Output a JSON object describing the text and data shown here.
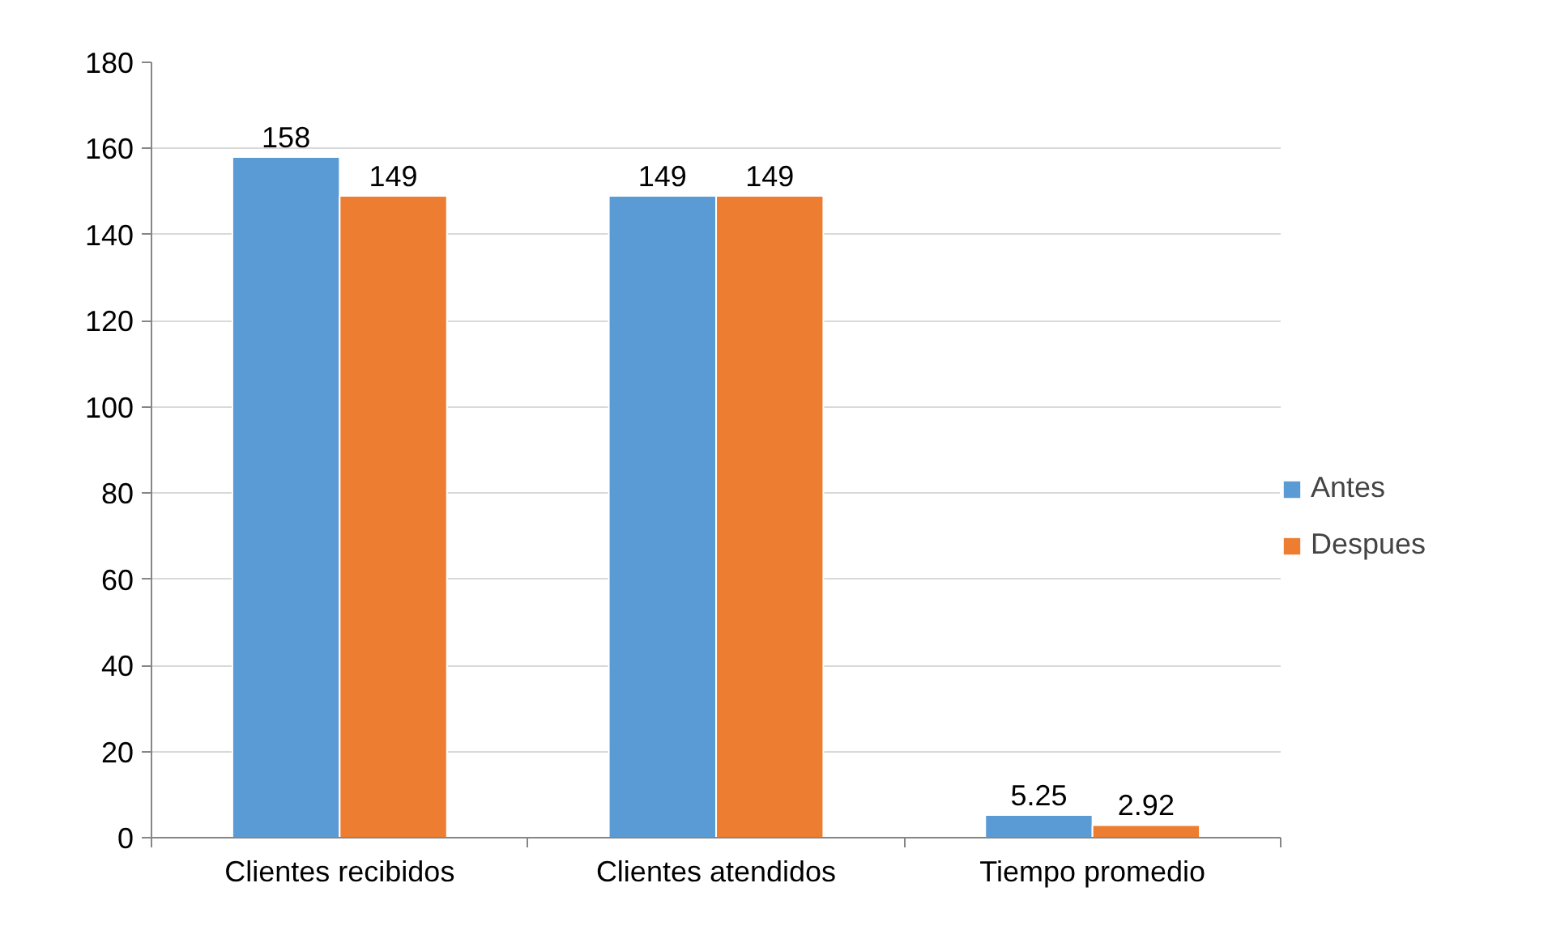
{
  "chart_data": {
    "type": "bar",
    "categories": [
      "Clientes recibidos",
      "Clientes atendidos",
      "Tiempo promedio"
    ],
    "series": [
      {
        "name": "Antes",
        "color": "#5b9bd5",
        "values": [
          158,
          149,
          5.25
        ]
      },
      {
        "name": "Despues",
        "color": "#ed7d31",
        "values": [
          149,
          149,
          2.92
        ]
      }
    ],
    "ylim": [
      0,
      180
    ],
    "yticks": [
      0,
      20,
      40,
      60,
      80,
      100,
      120,
      140,
      160,
      180
    ],
    "grid": "y",
    "legend": "right",
    "data_labels": true
  }
}
